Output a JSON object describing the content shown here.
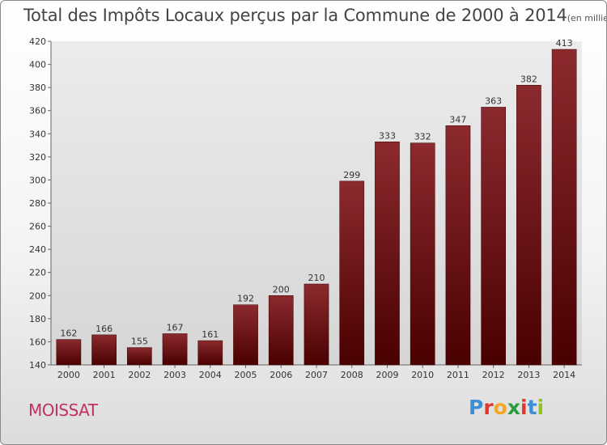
{
  "header": {
    "title": "Total des Impôts Locaux perçus par la Commune de 2000 à 2014",
    "unit": "(en milliers d'€)"
  },
  "commune": "MOISSAT",
  "logo": {
    "text": "Proxiti",
    "letters": [
      "P",
      "r",
      "o",
      "x",
      "i",
      "t",
      "i"
    ],
    "colors": [
      "#3a8fd6",
      "#e0392b",
      "#f5a623",
      "#2a9d3a",
      "#e0392b",
      "#3a8fd6",
      "#8fc31f"
    ]
  },
  "colors": {
    "bar_top": "#8b2a2f",
    "bar_bottom": "#4a0000",
    "plot_bg_top": "#ececec",
    "plot_bg_bottom": "#d6d6d6",
    "title": "#444444",
    "commune": "#c0325f"
  },
  "chart_data": {
    "type": "bar",
    "title": "Total des Impôts Locaux perçus par la Commune de 2000 à 2014",
    "xlabel": "",
    "ylabel": "",
    "ylim": [
      140,
      420
    ],
    "yticks": [
      140,
      160,
      180,
      200,
      220,
      240,
      260,
      280,
      300,
      320,
      340,
      360,
      380,
      400,
      420
    ],
    "grid": false,
    "categories": [
      "2000",
      "2001",
      "2002",
      "2003",
      "2004",
      "2005",
      "2006",
      "2007",
      "2008",
      "2009",
      "2010",
      "2011",
      "2012",
      "2013",
      "2014"
    ],
    "values": [
      162,
      166,
      155,
      167,
      161,
      192,
      200,
      210,
      299,
      333,
      332,
      347,
      363,
      382,
      413
    ]
  }
}
